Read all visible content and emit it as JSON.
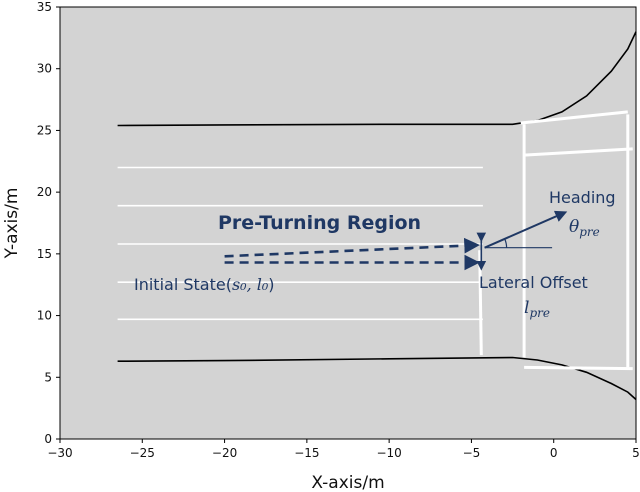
{
  "figure": {
    "xlabel": "X-axis/m",
    "ylabel": "Y-axis/m",
    "xlim": [
      -30,
      5
    ],
    "ylim": [
      0,
      35
    ],
    "x_ticks": [
      "−30",
      "−25",
      "−20",
      "−15",
      "−10",
      "−5",
      "0",
      "5"
    ],
    "y_ticks": [
      "0",
      "5",
      "10",
      "15",
      "20",
      "25",
      "30",
      "35"
    ],
    "colors": {
      "plot_background": "#d3d3d3",
      "lane_marking": "#ffffff",
      "road_edge": "#000000",
      "annotation": "#1f3864"
    }
  },
  "annotations": {
    "region_label": "Pre-Turning Region",
    "initial_state_text": "Initial State(",
    "initial_state_math": "s₀, l₀",
    "initial_state_close": ")",
    "heading_label": "Heading",
    "heading_symbol": "θ",
    "heading_subscript": "pre",
    "lateral_offset_label": "Lateral Offset",
    "lateral_offset_symbol": "l",
    "lateral_offset_subscript": "pre"
  },
  "chart_data": {
    "type": "line",
    "xlabel": "X-axis/m",
    "ylabel": "Y-axis/m",
    "xlim": [
      -30,
      5
    ],
    "ylim": [
      0,
      35
    ],
    "grid": false,
    "series": [
      {
        "role": "road-edge-top",
        "x": [
          -26.5,
          -20,
          -10,
          -2.5,
          -1,
          0.5,
          2,
          3.5,
          4.5,
          5
        ],
        "y": [
          25.4,
          25.45,
          25.5,
          25.5,
          25.8,
          26.5,
          27.8,
          29.8,
          31.6,
          33
        ]
      },
      {
        "role": "road-edge-bottom",
        "x": [
          -26.5,
          -20,
          -10,
          -2.5,
          -1,
          0.5,
          2,
          3.5,
          4.5,
          5
        ],
        "y": [
          6.3,
          6.35,
          6.5,
          6.6,
          6.4,
          6.0,
          5.4,
          4.5,
          3.8,
          3.2
        ]
      },
      {
        "role": "lane-line",
        "x": [
          -26.5,
          -4.3
        ],
        "y": [
          22.0,
          22.0
        ]
      },
      {
        "role": "lane-line",
        "x": [
          -26.5,
          -4.3
        ],
        "y": [
          18.9,
          18.9
        ]
      },
      {
        "role": "lane-line",
        "x": [
          -26.5,
          -4.3
        ],
        "y": [
          15.8,
          15.8
        ]
      },
      {
        "role": "lane-line",
        "x": [
          -26.5,
          -4.3
        ],
        "y": [
          12.7,
          12.7
        ]
      },
      {
        "role": "lane-line",
        "x": [
          -26.5,
          -4.3
        ],
        "y": [
          9.7,
          9.7
        ]
      },
      {
        "role": "stop-line",
        "x": [
          -4.5,
          -4.4
        ],
        "y": [
          15.3,
          6.8
        ]
      },
      {
        "role": "crosswalk-edge",
        "x": [
          -1.8,
          -1.8
        ],
        "y": [
          25.5,
          6.6
        ]
      },
      {
        "role": "crosswalk-edge",
        "x": [
          4.5,
          4.5
        ],
        "y": [
          26.3,
          5.8
        ]
      },
      {
        "role": "crosswalk-line",
        "x": [
          -2.0,
          4.5
        ],
        "y": [
          25.6,
          26.5
        ]
      },
      {
        "role": "crosswalk-line",
        "x": [
          -1.8,
          4.8
        ],
        "y": [
          23.0,
          23.5
        ]
      },
      {
        "role": "crosswalk-line",
        "x": [
          -1.8,
          4.8
        ],
        "y": [
          5.8,
          5.7
        ]
      },
      {
        "role": "trajectory-upper",
        "x": [
          -20,
          -4.8
        ],
        "y": [
          14.8,
          15.7
        ]
      },
      {
        "role": "trajectory-lower",
        "x": [
          -20,
          -4.8
        ],
        "y": [
          14.3,
          14.3
        ]
      },
      {
        "role": "heading-reference",
        "x": [
          -4.2,
          -0.1
        ],
        "y": [
          15.5,
          15.5
        ]
      },
      {
        "role": "heading-arrow",
        "x": [
          -4.2,
          0.6
        ],
        "y": [
          15.5,
          18.3
        ]
      },
      {
        "role": "offset-arrow",
        "x": [
          -4.4,
          -4.4
        ],
        "y": [
          16.2,
          13.9
        ]
      }
    ]
  }
}
